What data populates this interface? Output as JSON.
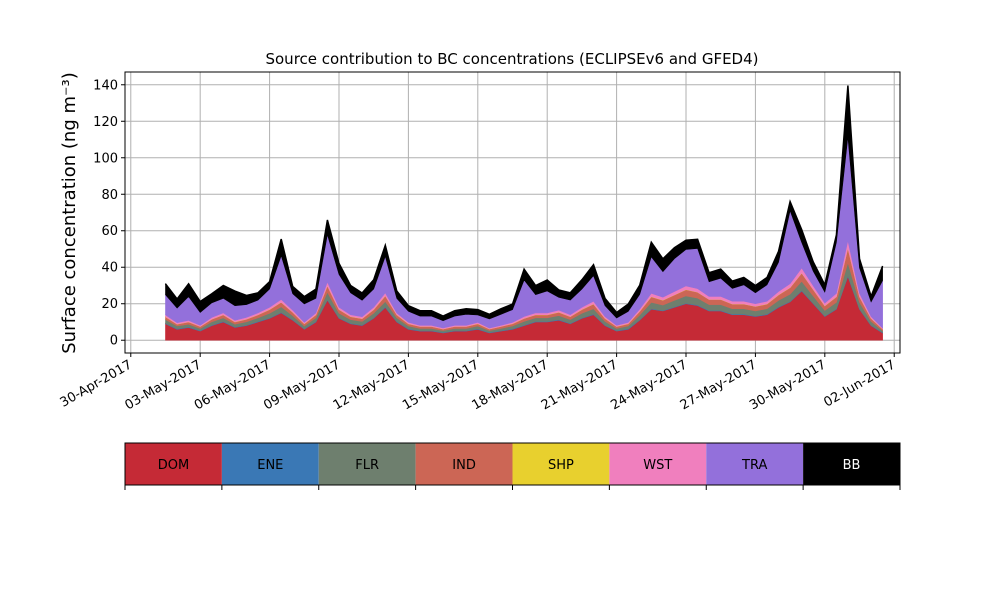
{
  "chart_data": {
    "type": "area",
    "stacked": true,
    "title": "Source contribution to BC concentrations (ECLIPSEv6 and GFED4)",
    "ylabel": "Surface concentration (ng m⁻³)",
    "xlabel": "",
    "grid": true,
    "ylim": [
      -7,
      147
    ],
    "xlim": [
      "2017-04-29T18:00",
      "2017-06-02T06:00"
    ],
    "y_ticks": [
      0,
      20,
      40,
      60,
      80,
      100,
      120,
      140
    ],
    "y_tick_labels": [
      "0",
      "20",
      "40",
      "60",
      "80",
      "100",
      "120",
      "140"
    ],
    "x_ticks": [
      "2017-04-30",
      "2017-05-03",
      "2017-05-06",
      "2017-05-09",
      "2017-05-12",
      "2017-05-15",
      "2017-05-18",
      "2017-05-21",
      "2017-05-24",
      "2017-05-27",
      "2017-05-30",
      "2017-06-02"
    ],
    "x_tick_labels": [
      "30-Apr-2017",
      "03-May-2017",
      "06-May-2017",
      "09-May-2017",
      "12-May-2017",
      "15-May-2017",
      "18-May-2017",
      "21-May-2017",
      "24-May-2017",
      "27-May-2017",
      "30-May-2017",
      "02-Jun-2017"
    ],
    "x": [
      "2017-05-01T12:00",
      "2017-05-02T00:00",
      "2017-05-02T12:00",
      "2017-05-03T00:00",
      "2017-05-03T12:00",
      "2017-05-04T00:00",
      "2017-05-04T12:00",
      "2017-05-05T00:00",
      "2017-05-05T12:00",
      "2017-05-06T00:00",
      "2017-05-06T12:00",
      "2017-05-07T00:00",
      "2017-05-07T12:00",
      "2017-05-08T00:00",
      "2017-05-08T12:00",
      "2017-05-09T00:00",
      "2017-05-09T12:00",
      "2017-05-10T00:00",
      "2017-05-10T12:00",
      "2017-05-11T00:00",
      "2017-05-11T12:00",
      "2017-05-12T00:00",
      "2017-05-12T12:00",
      "2017-05-13T00:00",
      "2017-05-13T12:00",
      "2017-05-14T00:00",
      "2017-05-14T12:00",
      "2017-05-15T00:00",
      "2017-05-15T12:00",
      "2017-05-16T00:00",
      "2017-05-16T12:00",
      "2017-05-17T00:00",
      "2017-05-17T12:00",
      "2017-05-18T00:00",
      "2017-05-18T12:00",
      "2017-05-19T00:00",
      "2017-05-19T12:00",
      "2017-05-20T00:00",
      "2017-05-20T12:00",
      "2017-05-21T00:00",
      "2017-05-21T12:00",
      "2017-05-22T00:00",
      "2017-05-22T12:00",
      "2017-05-23T00:00",
      "2017-05-23T12:00",
      "2017-05-24T00:00",
      "2017-05-24T12:00",
      "2017-05-25T00:00",
      "2017-05-25T12:00",
      "2017-05-26T00:00",
      "2017-05-26T12:00",
      "2017-05-27T00:00",
      "2017-05-27T12:00",
      "2017-05-28T00:00",
      "2017-05-28T12:00",
      "2017-05-29T00:00",
      "2017-05-29T12:00",
      "2017-05-30T00:00",
      "2017-05-30T12:00",
      "2017-05-31T00:00",
      "2017-05-31T12:00",
      "2017-06-01T00:00",
      "2017-06-01T12:00"
    ],
    "series": [
      {
        "name": "DOM",
        "color": "#c52a36",
        "values": [
          9,
          6,
          7,
          5,
          8,
          10,
          7,
          8,
          10,
          12,
          15,
          11,
          6,
          10,
          22,
          12,
          9,
          8,
          12,
          18,
          10,
          6,
          5,
          5,
          4,
          5,
          5,
          6,
          4,
          5,
          6,
          8,
          10,
          10,
          11,
          9,
          12,
          14,
          8,
          5,
          6,
          11,
          17,
          16,
          18,
          20,
          19,
          16,
          16,
          14,
          14,
          13,
          14,
          18,
          21,
          27,
          20,
          13,
          17,
          35,
          17,
          8,
          4
        ]
      },
      {
        "name": "ENE",
        "color": "#3a78b5",
        "values": [
          0.3,
          0.3,
          0.3,
          0.3,
          0.3,
          0.3,
          0.3,
          0.3,
          0.3,
          0.3,
          0.3,
          0.3,
          0.3,
          0.3,
          0.3,
          0.3,
          0.3,
          0.3,
          0.3,
          0.3,
          0.3,
          0.3,
          0.3,
          0.3,
          0.3,
          0.3,
          0.3,
          0.3,
          0.3,
          0.3,
          0.3,
          0.3,
          0.3,
          0.3,
          0.3,
          0.3,
          0.3,
          0.3,
          0.3,
          0.3,
          0.3,
          0.3,
          0.3,
          0.3,
          0.3,
          0.3,
          0.3,
          0.3,
          0.3,
          0.3,
          0.3,
          0.3,
          0.3,
          0.3,
          0.3,
          0.3,
          0.3,
          0.3,
          0.3,
          0.5,
          0.3,
          0.3,
          0.3
        ]
      },
      {
        "name": "FLR",
        "color": "#6e7f6e",
        "values": [
          2,
          1.5,
          1.5,
          1.2,
          1.8,
          2,
          1.5,
          1.8,
          2,
          2.5,
          3,
          2.2,
          1.5,
          2,
          4,
          2.5,
          2,
          2,
          2.5,
          3,
          2,
          1.5,
          1.2,
          1.2,
          1,
          1.2,
          1.2,
          1.5,
          1,
          1.2,
          1.5,
          2,
          2,
          2,
          2.2,
          2,
          2.5,
          3,
          2,
          1.2,
          1.5,
          2.5,
          3.5,
          3,
          3.5,
          4,
          3.8,
          3.2,
          3.2,
          3,
          3,
          2.8,
          3,
          3.5,
          4,
          5,
          4,
          3,
          3.5,
          7,
          3.5,
          2,
          1
        ]
      },
      {
        "name": "IND",
        "color": "#cc6655",
        "values": [
          1.5,
          1,
          1.2,
          1,
          1.4,
          1.6,
          1.2,
          1.4,
          1.6,
          2,
          2.5,
          1.8,
          1.2,
          1.6,
          3.5,
          2,
          1.6,
          1.5,
          2,
          3,
          1.6,
          1.2,
          1,
          1,
          0.8,
          1,
          1,
          1.2,
          0.8,
          1,
          1.2,
          1.6,
          1.6,
          1.6,
          1.8,
          1.6,
          2,
          2.5,
          1.6,
          1,
          1.2,
          2,
          3,
          2.6,
          3,
          3.4,
          3.2,
          2.8,
          2.8,
          2.5,
          2.5,
          2.4,
          2.5,
          3,
          3.5,
          4.5,
          3.5,
          2.5,
          3,
          8,
          3,
          1.6,
          0.8
        ]
      },
      {
        "name": "SHP",
        "color": "#e8d02e",
        "values": [
          0.1,
          0.1,
          0.1,
          0.1,
          0.1,
          0.1,
          0.1,
          0.1,
          0.1,
          0.1,
          0.1,
          0.1,
          0.1,
          0.1,
          0.1,
          0.1,
          0.1,
          0.1,
          0.1,
          0.1,
          0.1,
          0.1,
          0.1,
          0.1,
          0.1,
          0.1,
          0.1,
          0.1,
          0.1,
          0.1,
          0.1,
          0.1,
          0.1,
          0.1,
          0.1,
          0.1,
          0.1,
          0.1,
          0.1,
          0.1,
          0.1,
          0.1,
          0.1,
          0.1,
          0.1,
          0.1,
          0.1,
          0.1,
          0.1,
          0.1,
          0.1,
          0.1,
          0.1,
          0.1,
          0.1,
          0.1,
          0.1,
          0.1,
          0.1,
          0.1,
          0.1,
          0.1,
          0.1
        ]
      },
      {
        "name": "WST",
        "color": "#f07fbe",
        "values": [
          1,
          0.7,
          0.8,
          0.6,
          0.9,
          1,
          0.8,
          0.9,
          1,
          1.2,
          1.5,
          1.1,
          0.8,
          1,
          2,
          1.2,
          1,
          1,
          1.2,
          1.6,
          1,
          0.8,
          0.6,
          0.6,
          0.5,
          0.6,
          0.6,
          0.7,
          0.5,
          0.6,
          0.7,
          1,
          1,
          1,
          1.1,
          1,
          1.2,
          1.5,
          1,
          0.6,
          0.7,
          1.2,
          1.8,
          1.6,
          1.8,
          2,
          1.9,
          1.6,
          1.6,
          1.5,
          1.5,
          1.4,
          1.5,
          1.8,
          2.1,
          2.7,
          2,
          1.5,
          1.8,
          4,
          1.8,
          1,
          0.5
        ]
      },
      {
        "name": "TRA",
        "color": "#9370db",
        "values": [
          11,
          8,
          13,
          7,
          8,
          8,
          8,
          7,
          7,
          10,
          24,
          9,
          10,
          8,
          26,
          18,
          12,
          9,
          10,
          20,
          8,
          6,
          5,
          5,
          4,
          5,
          6,
          4,
          5,
          6,
          7,
          20,
          10,
          12,
          7,
          8,
          10,
          14,
          6,
          4,
          6,
          8,
          20,
          14,
          18,
          20,
          22,
          8,
          10,
          7,
          9,
          6,
          9,
          16,
          40,
          14,
          8,
          6,
          28,
          57,
          14,
          8,
          26
        ]
      },
      {
        "name": "BB",
        "color": "#000000",
        "values": [
          6,
          5,
          7,
          6,
          5,
          7,
          8,
          5,
          4,
          4,
          9,
          4,
          4,
          5,
          8,
          6,
          4,
          4,
          5,
          6,
          4,
          3,
          3,
          3,
          2.5,
          3,
          3,
          3,
          2.5,
          3,
          3,
          6,
          5,
          6,
          4,
          4,
          5,
          6,
          4,
          3,
          4,
          5,
          8,
          7,
          6,
          5,
          5,
          5,
          5,
          4,
          4,
          4,
          4,
          6,
          5,
          7,
          5,
          4,
          4,
          28,
          5,
          3,
          8
        ]
      }
    ]
  },
  "legend": {
    "items": [
      {
        "label": "DOM",
        "color": "#c52a36",
        "text_color": "#000000"
      },
      {
        "label": "ENE",
        "color": "#3a78b5",
        "text_color": "#000000"
      },
      {
        "label": "FLR",
        "color": "#6e7f6e",
        "text_color": "#000000"
      },
      {
        "label": "IND",
        "color": "#cc6655",
        "text_color": "#000000"
      },
      {
        "label": "SHP",
        "color": "#e8d02e",
        "text_color": "#000000"
      },
      {
        "label": "WST",
        "color": "#f07fbe",
        "text_color": "#000000"
      },
      {
        "label": "TRA",
        "color": "#9370db",
        "text_color": "#000000"
      },
      {
        "label": "BB",
        "color": "#000000",
        "text_color": "#ffffff"
      }
    ]
  }
}
